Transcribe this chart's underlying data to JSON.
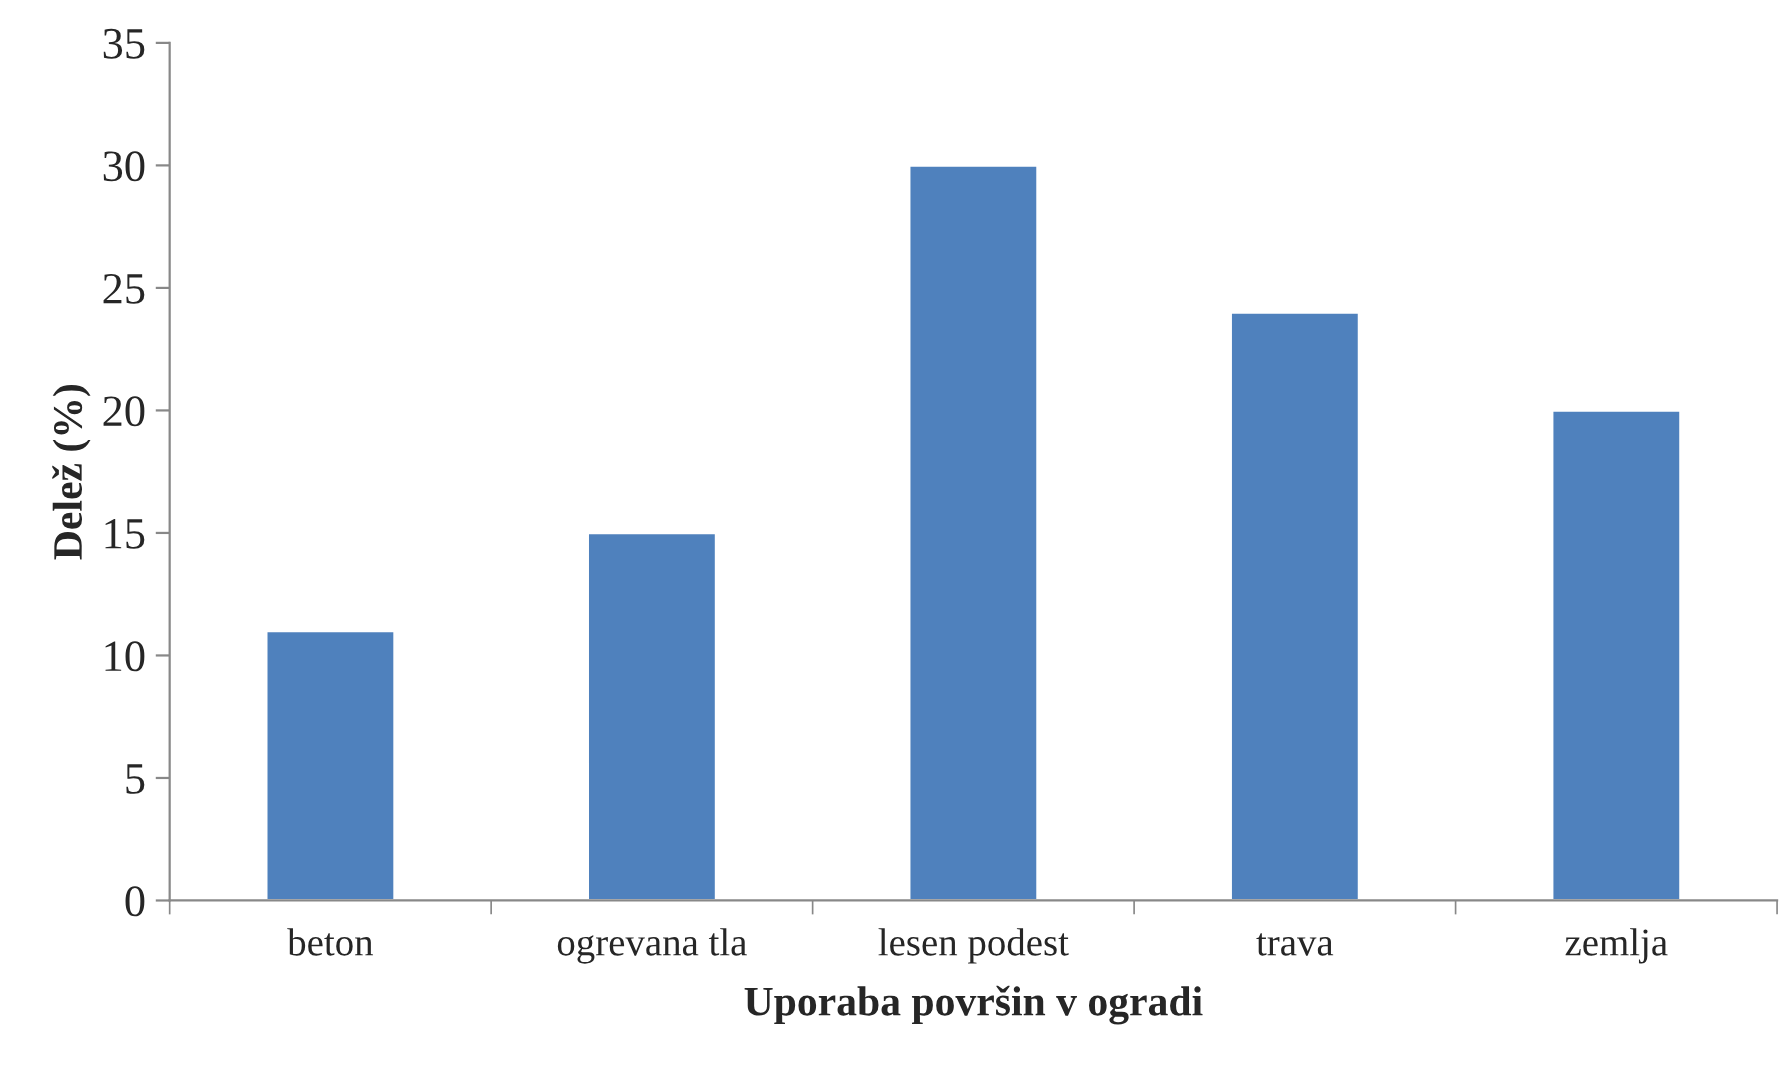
{
  "chart_data": {
    "type": "bar",
    "xlabel": "Uporaba površin v ogradi",
    "ylabel": "Delež (%)",
    "categories": [
      "beton",
      "ogrevana tla",
      "lesen podest",
      "trava",
      "zemlja"
    ],
    "values": [
      11,
      15,
      30,
      24,
      20
    ],
    "color": "#4f81bd",
    "ylim": [
      0,
      35
    ],
    "yticks": [
      0,
      5,
      10,
      15,
      20,
      25,
      30,
      35
    ],
    "grid": false
  }
}
